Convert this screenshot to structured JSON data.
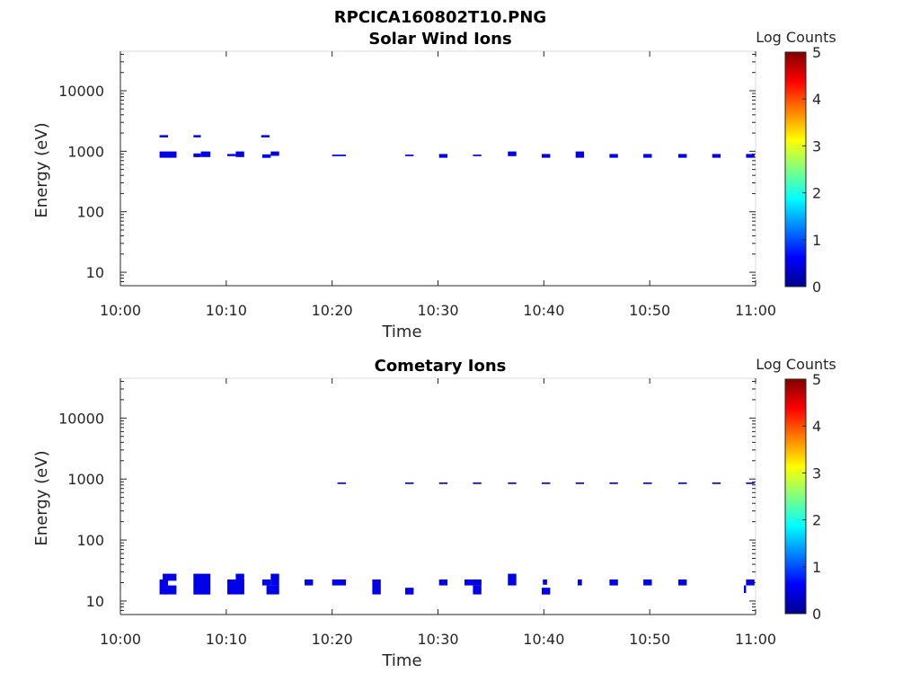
{
  "figure_title": "RPCICA160802T10.PNG",
  "colors": {
    "colormap": [
      "#00008f",
      "#0000ff",
      "#0080ff",
      "#00ffff",
      "#80ff80",
      "#ffff00",
      "#ff8000",
      "#ff0000",
      "#800000"
    ],
    "mark": "#0a0a9e",
    "axis": "#262626"
  },
  "chart_data": [
    {
      "type": "heatmap",
      "title": "Solar Wind Ions",
      "xlabel": "Time",
      "ylabel": "Energy (eV)",
      "x_ticks": [
        "10:00",
        "10:10",
        "10:20",
        "10:30",
        "10:40",
        "10:50",
        "11:00"
      ],
      "x_range_minutes": [
        0,
        60
      ],
      "y_scale": "log",
      "y_ticks": [
        10,
        100,
        1000,
        10000
      ],
      "y_tick_labels": [
        "10",
        "100",
        "1000",
        "10000"
      ],
      "y_range": [
        6,
        45000
      ],
      "colorbar": {
        "label": "Log Counts",
        "range": [
          0,
          5
        ],
        "ticks": [
          "0",
          "1",
          "2",
          "3",
          "4",
          "5"
        ]
      },
      "cells": [
        {
          "t0": 3.7,
          "t1": 4.5,
          "e0": 1700,
          "e1": 1850,
          "v": 0.5
        },
        {
          "t0": 6.9,
          "t1": 7.6,
          "e0": 1700,
          "e1": 1850,
          "v": 0.5
        },
        {
          "t0": 13.3,
          "t1": 14.1,
          "e0": 1700,
          "e1": 1850,
          "v": 0.5
        },
        {
          "t0": 3.7,
          "t1": 5.3,
          "e0": 780,
          "e1": 990,
          "v": 0.5
        },
        {
          "t0": 6.9,
          "t1": 7.6,
          "e0": 800,
          "e1": 920,
          "v": 0.5
        },
        {
          "t0": 7.6,
          "t1": 8.5,
          "e0": 800,
          "e1": 990,
          "v": 0.5
        },
        {
          "t0": 10.1,
          "t1": 10.9,
          "e0": 830,
          "e1": 900,
          "v": 0.5
        },
        {
          "t0": 10.9,
          "t1": 11.7,
          "e0": 800,
          "e1": 990,
          "v": 0.5
        },
        {
          "t0": 13.4,
          "t1": 14.2,
          "e0": 780,
          "e1": 890,
          "v": 0.5
        },
        {
          "t0": 14.2,
          "t1": 15.0,
          "e0": 840,
          "e1": 990,
          "v": 0.5
        },
        {
          "t0": 20.0,
          "t1": 21.3,
          "e0": 830,
          "e1": 880,
          "v": 0.5
        },
        {
          "t0": 26.9,
          "t1": 27.7,
          "e0": 830,
          "e1": 880,
          "v": 0.5
        },
        {
          "t0": 30.1,
          "t1": 30.9,
          "e0": 780,
          "e1": 900,
          "v": 0.5
        },
        {
          "t0": 33.3,
          "t1": 34.1,
          "e0": 830,
          "e1": 880,
          "v": 0.5
        },
        {
          "t0": 36.6,
          "t1": 37.4,
          "e0": 830,
          "e1": 990,
          "v": 0.5
        },
        {
          "t0": 39.8,
          "t1": 40.6,
          "e0": 780,
          "e1": 900,
          "v": 0.5
        },
        {
          "t0": 43.0,
          "t1": 43.8,
          "e0": 780,
          "e1": 990,
          "v": 0.5
        },
        {
          "t0": 46.2,
          "t1": 47.0,
          "e0": 780,
          "e1": 900,
          "v": 0.5
        },
        {
          "t0": 49.4,
          "t1": 50.2,
          "e0": 780,
          "e1": 900,
          "v": 0.5
        },
        {
          "t0": 52.7,
          "t1": 53.5,
          "e0": 780,
          "e1": 900,
          "v": 0.5
        },
        {
          "t0": 55.9,
          "t1": 56.7,
          "e0": 780,
          "e1": 900,
          "v": 0.5
        },
        {
          "t0": 59.1,
          "t1": 59.9,
          "e0": 780,
          "e1": 900,
          "v": 0.5
        }
      ]
    },
    {
      "type": "heatmap",
      "title": "Cometary Ions",
      "xlabel": "Time",
      "ylabel": "Energy (eV)",
      "x_ticks": [
        "10:00",
        "10:10",
        "10:20",
        "10:30",
        "10:40",
        "10:50",
        "11:00"
      ],
      "x_range_minutes": [
        0,
        60
      ],
      "y_scale": "log",
      "y_ticks": [
        10,
        100,
        1000,
        10000
      ],
      "y_tick_labels": [
        "10",
        "100",
        "1000",
        "10000"
      ],
      "y_range": [
        6,
        45000
      ],
      "colorbar": {
        "label": "Log Counts",
        "range": [
          0,
          5
        ],
        "ticks": [
          "0",
          "1",
          "2",
          "3",
          "4",
          "5"
        ]
      },
      "cells": [
        {
          "t0": 20.5,
          "t1": 21.3,
          "e0": 830,
          "e1": 880,
          "v": 0.5
        },
        {
          "t0": 26.9,
          "t1": 27.7,
          "e0": 830,
          "e1": 880,
          "v": 0.5
        },
        {
          "t0": 30.1,
          "t1": 30.9,
          "e0": 830,
          "e1": 880,
          "v": 0.5
        },
        {
          "t0": 33.3,
          "t1": 34.1,
          "e0": 830,
          "e1": 880,
          "v": 0.5
        },
        {
          "t0": 36.6,
          "t1": 37.4,
          "e0": 830,
          "e1": 880,
          "v": 0.5
        },
        {
          "t0": 39.8,
          "t1": 40.6,
          "e0": 830,
          "e1": 880,
          "v": 0.5
        },
        {
          "t0": 43.0,
          "t1": 43.8,
          "e0": 830,
          "e1": 880,
          "v": 0.5
        },
        {
          "t0": 46.2,
          "t1": 47.0,
          "e0": 830,
          "e1": 880,
          "v": 0.5
        },
        {
          "t0": 49.4,
          "t1": 50.2,
          "e0": 830,
          "e1": 880,
          "v": 0.5
        },
        {
          "t0": 52.7,
          "t1": 53.5,
          "e0": 830,
          "e1": 880,
          "v": 0.5
        },
        {
          "t0": 55.9,
          "t1": 56.7,
          "e0": 830,
          "e1": 880,
          "v": 0.5
        },
        {
          "t0": 59.1,
          "t1": 59.9,
          "e0": 830,
          "e1": 880,
          "v": 0.5
        },
        {
          "t0": 3.7,
          "t1": 4.5,
          "e0": 12.8,
          "e1": 22.5,
          "v": 0.5
        },
        {
          "t0": 4.0,
          "t1": 5.3,
          "e0": 21.5,
          "e1": 28.0,
          "v": 0.5
        },
        {
          "t0": 4.0,
          "t1": 5.3,
          "e0": 12.8,
          "e1": 18.0,
          "v": 0.5
        },
        {
          "t0": 6.9,
          "t1": 8.5,
          "e0": 12.8,
          "e1": 28.0,
          "v": 0.5
        },
        {
          "t0": 10.1,
          "t1": 11.7,
          "e0": 12.8,
          "e1": 22.5,
          "v": 0.5
        },
        {
          "t0": 10.9,
          "t1": 11.7,
          "e0": 21.5,
          "e1": 28.0,
          "v": 0.5
        },
        {
          "t0": 13.4,
          "t1": 14.2,
          "e0": 18.0,
          "e1": 22.5,
          "v": 0.5
        },
        {
          "t0": 13.8,
          "t1": 15.0,
          "e0": 12.8,
          "e1": 18.0,
          "v": 0.5
        },
        {
          "t0": 14.2,
          "t1": 15.0,
          "e0": 18.0,
          "e1": 28.0,
          "v": 0.5
        },
        {
          "t0": 17.4,
          "t1": 18.2,
          "e0": 18.0,
          "e1": 22.5,
          "v": 0.5
        },
        {
          "t0": 20.0,
          "t1": 21.3,
          "e0": 18.0,
          "e1": 22.5,
          "v": 0.5
        },
        {
          "t0": 23.8,
          "t1": 24.6,
          "e0": 12.8,
          "e1": 22.5,
          "v": 0.5
        },
        {
          "t0": 26.9,
          "t1": 27.7,
          "e0": 12.8,
          "e1": 16.5,
          "v": 0.5
        },
        {
          "t0": 30.1,
          "t1": 30.9,
          "e0": 18.0,
          "e1": 22.5,
          "v": 0.5
        },
        {
          "t0": 32.5,
          "t1": 34.1,
          "e0": 18.0,
          "e1": 22.5,
          "v": 0.5
        },
        {
          "t0": 33.3,
          "t1": 34.1,
          "e0": 12.8,
          "e1": 18.0,
          "v": 0.5
        },
        {
          "t0": 36.6,
          "t1": 37.4,
          "e0": 18.0,
          "e1": 28.0,
          "v": 0.5
        },
        {
          "t0": 39.8,
          "t1": 40.6,
          "e0": 12.8,
          "e1": 16.5,
          "v": 0.5
        },
        {
          "t0": 39.9,
          "t1": 40.3,
          "e0": 18.5,
          "e1": 22.5,
          "v": 0.5
        },
        {
          "t0": 43.2,
          "t1": 43.6,
          "e0": 18.0,
          "e1": 22.5,
          "v": 0.5
        },
        {
          "t0": 46.2,
          "t1": 47.0,
          "e0": 18.0,
          "e1": 22.5,
          "v": 0.5
        },
        {
          "t0": 49.4,
          "t1": 50.2,
          "e0": 18.0,
          "e1": 22.5,
          "v": 0.5
        },
        {
          "t0": 52.7,
          "t1": 53.5,
          "e0": 18.0,
          "e1": 22.5,
          "v": 0.5
        },
        {
          "t0": 58.9,
          "t1": 59.1,
          "e0": 13.5,
          "e1": 18.0,
          "v": 0.5
        },
        {
          "t0": 59.1,
          "t1": 59.9,
          "e0": 18.0,
          "e1": 22.5,
          "v": 0.5
        }
      ]
    }
  ]
}
